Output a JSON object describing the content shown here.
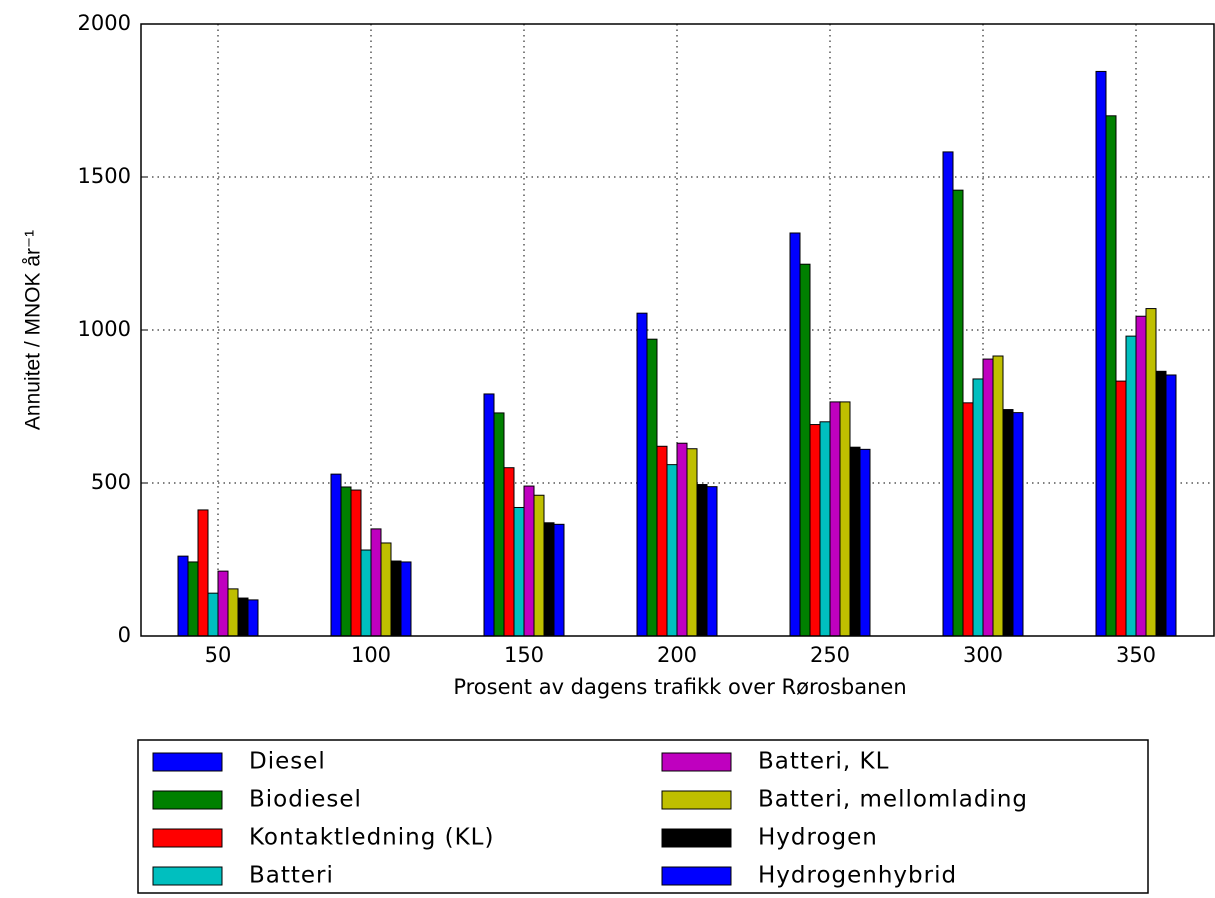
{
  "chart_data": {
    "type": "bar",
    "x_label": "Prosent av dagens trafikk over Rørosbanen",
    "y_label": "Annuitet / MNOK år⁻¹",
    "categories": [
      "50",
      "100",
      "150",
      "200",
      "250",
      "300",
      "350"
    ],
    "series": [
      {
        "name": "Diesel",
        "color": "#0000ff",
        "values": [
          261,
          529,
          791,
          1055,
          1317,
          1582,
          1845
        ]
      },
      {
        "name": "Biodiesel",
        "color": "#008000",
        "values": [
          242,
          487,
          729,
          970,
          1215,
          1457,
          1700
        ]
      },
      {
        "name": "Kontaktledning (KL)",
        "color": "#ff0000",
        "values": [
          412,
          477,
          550,
          620,
          691,
          762,
          833
        ]
      },
      {
        "name": "Batteri",
        "color": "#00bfbf",
        "values": [
          140,
          281,
          420,
          560,
          700,
          840,
          980
        ]
      },
      {
        "name": "Batteri, KL",
        "color": "#bf00bf",
        "values": [
          212,
          350,
          490,
          630,
          765,
          905,
          1045
        ]
      },
      {
        "name": "Batteri, mellomlading",
        "color": "#bfbf00",
        "values": [
          154,
          304,
          460,
          612,
          765,
          915,
          1070
        ]
      },
      {
        "name": "Hydrogen",
        "color": "#000000",
        "values": [
          124,
          245,
          370,
          495,
          617,
          740,
          865
        ]
      },
      {
        "name": "Hydrogenhybrid",
        "color": "#0000ff",
        "values": [
          118,
          242,
          365,
          488,
          610,
          730,
          853
        ]
      }
    ],
    "ylim": [
      0,
      2000
    ],
    "yticks": [
      0,
      500,
      1000,
      1500,
      2000
    ],
    "grid": true
  }
}
